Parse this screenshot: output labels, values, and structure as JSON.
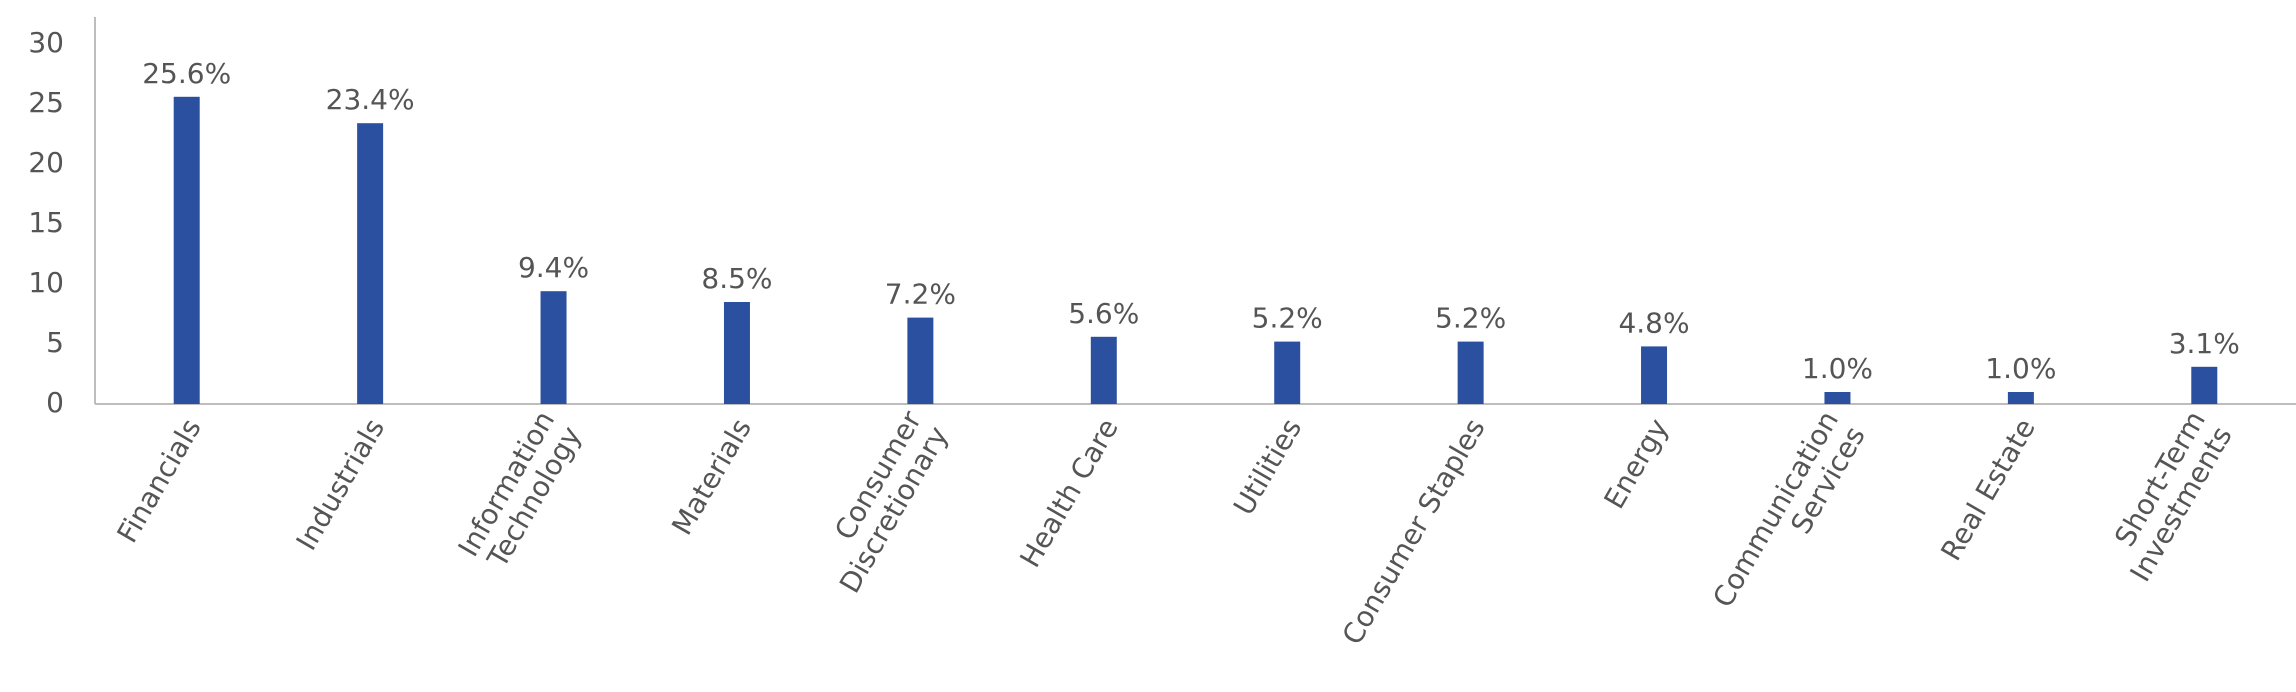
{
  "chart_data": {
    "type": "bar",
    "categories": [
      [
        "Financials"
      ],
      [
        "Industrials"
      ],
      [
        "Information",
        "Technology"
      ],
      [
        "Materials"
      ],
      [
        "Consumer",
        "Discretionary"
      ],
      [
        "Health Care"
      ],
      [
        "Utilities"
      ],
      [
        "Consumer Staples"
      ],
      [
        "Energy"
      ],
      [
        "Communication",
        "Services"
      ],
      [
        "Real Estate"
      ],
      [
        "Short-Term",
        "Investments"
      ]
    ],
    "values": [
      25.6,
      23.4,
      9.4,
      8.5,
      7.2,
      5.6,
      5.2,
      5.2,
      4.8,
      1.0,
      1.0,
      3.1
    ],
    "value_labels": [
      "25.6%",
      "23.4%",
      "9.4%",
      "8.5%",
      "7.2%",
      "5.6%",
      "5.2%",
      "5.2%",
      "4.8%",
      "1.0%",
      "1.0%",
      "3.1%"
    ],
    "color": "#2c50a0",
    "ylim": [
      0,
      32
    ],
    "yticks": [
      0,
      5,
      10,
      15,
      20,
      25,
      30
    ],
    "grid": false
  }
}
